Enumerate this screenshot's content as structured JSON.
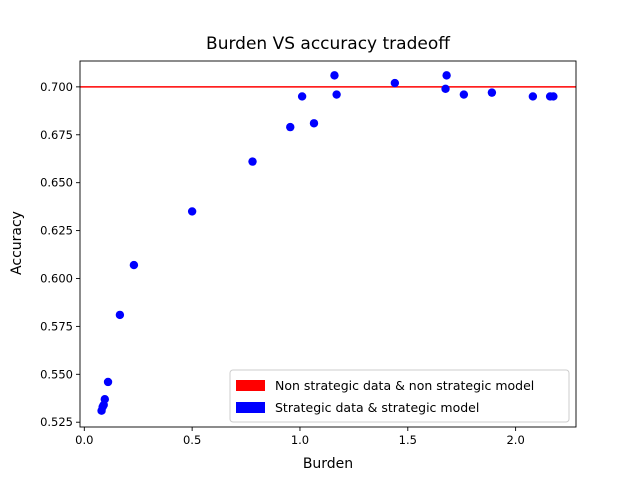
{
  "chart_data": {
    "type": "scatter",
    "title": "Burden VS accuracy tradeoff",
    "xlabel": "Burden",
    "ylabel": "Accuracy",
    "xlim": [
      -0.02,
      2.28
    ],
    "ylim": [
      0.5225,
      0.7135
    ],
    "xticks": [
      0.0,
      0.5,
      1.0,
      1.5,
      2.0
    ],
    "xtick_labels": [
      "0.0",
      "0.5",
      "1.0",
      "1.5",
      "2.0"
    ],
    "yticks": [
      0.525,
      0.55,
      0.575,
      0.6,
      0.625,
      0.65,
      0.675,
      0.7
    ],
    "ytick_labels": [
      "0.525",
      "0.550",
      "0.575",
      "0.600",
      "0.625",
      "0.650",
      "0.675",
      "0.700"
    ],
    "grid": false,
    "legend_position": "bottom-right",
    "reference_line": {
      "name": "Non strategic data & non strategic model",
      "y": 0.7,
      "color": "#ff0000"
    },
    "series": [
      {
        "name": "Strategic data & strategic model",
        "color": "#0000ff",
        "x": [
          0.08,
          0.085,
          0.09,
          0.095,
          0.11,
          0.165,
          0.23,
          0.5,
          0.78,
          0.955,
          1.01,
          1.065,
          1.16,
          1.17,
          1.44,
          1.675,
          1.68,
          1.76,
          1.89,
          2.08,
          2.16,
          2.175
        ],
        "y": [
          0.531,
          0.533,
          0.534,
          0.537,
          0.546,
          0.581,
          0.607,
          0.635,
          0.661,
          0.679,
          0.695,
          0.681,
          0.706,
          0.696,
          0.702,
          0.699,
          0.706,
          0.696,
          0.697,
          0.695,
          0.695,
          0.695
        ]
      }
    ]
  }
}
